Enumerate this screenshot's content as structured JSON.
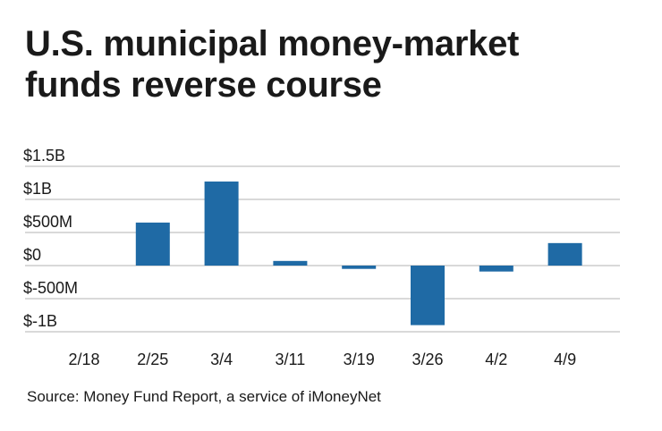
{
  "title_lines": [
    "U.S. municipal money-market",
    "funds reverse course"
  ],
  "source": "Source: Money Fund Report, a service of iMoneyNet",
  "colors": {
    "bar": "#1f6aa5",
    "grid": "#b3b3b3",
    "text": "#1a1a1a"
  },
  "chart_data": {
    "type": "bar",
    "title": "U.S. municipal money-market funds reverse course",
    "xlabel": "",
    "ylabel": "",
    "categories": [
      "2/18",
      "2/25",
      "3/4",
      "3/11",
      "3/19",
      "3/26",
      "4/2",
      "4/9"
    ],
    "values": [
      0,
      650,
      1270,
      70,
      -50,
      -900,
      -90,
      340
    ],
    "value_unit": "millions of dollars",
    "ylim": [
      -1000,
      1500
    ],
    "yticks": [
      1500,
      1000,
      500,
      0,
      -500,
      -1000
    ],
    "ytick_labels": [
      "$1.5B",
      "$1B",
      "$500M",
      "$0",
      "$-500M",
      "$-1B"
    ],
    "grid": true,
    "legend": "none"
  }
}
